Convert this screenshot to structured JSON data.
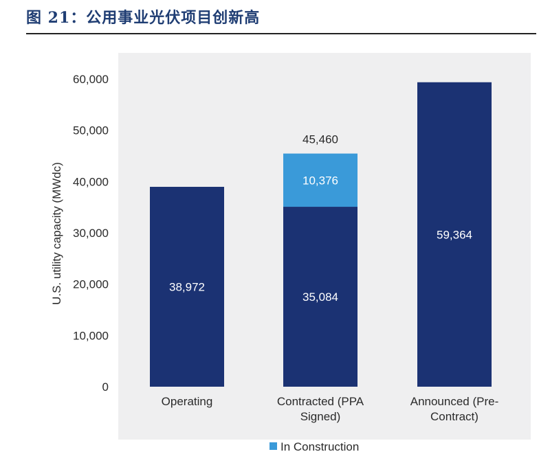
{
  "figure_title": "图 21：公用事业光伏项目创新高",
  "chart_data": {
    "type": "bar",
    "stacked": true,
    "categories": [
      [
        "Operating"
      ],
      [
        "Contracted (PPA",
        "Signed)"
      ],
      [
        "Announced (Pre-",
        "Contract)"
      ]
    ],
    "series": [
      {
        "values": [
          38972,
          35084,
          59364
        ],
        "color": "#1b3273"
      },
      {
        "name": "In Construction",
        "values": [
          0,
          10376,
          0
        ],
        "color": "#3a9ad9"
      }
    ],
    "totals": [
      null,
      "45,460",
      null
    ],
    "data_labels": [
      [
        "38,972",
        ""
      ],
      [
        "35,084",
        "10,376"
      ],
      [
        "59,364",
        ""
      ]
    ],
    "ylabel": "U.S. utility capacity (MWdc)",
    "ylim": [
      0,
      60000
    ],
    "yticks": [
      "0",
      "10,000",
      "20,000",
      "30,000",
      "40,000",
      "50,000",
      "60,000"
    ],
    "plot_background": "#efeff0",
    "legend": {
      "position": "bottom",
      "entries": [
        "In Construction"
      ]
    }
  }
}
